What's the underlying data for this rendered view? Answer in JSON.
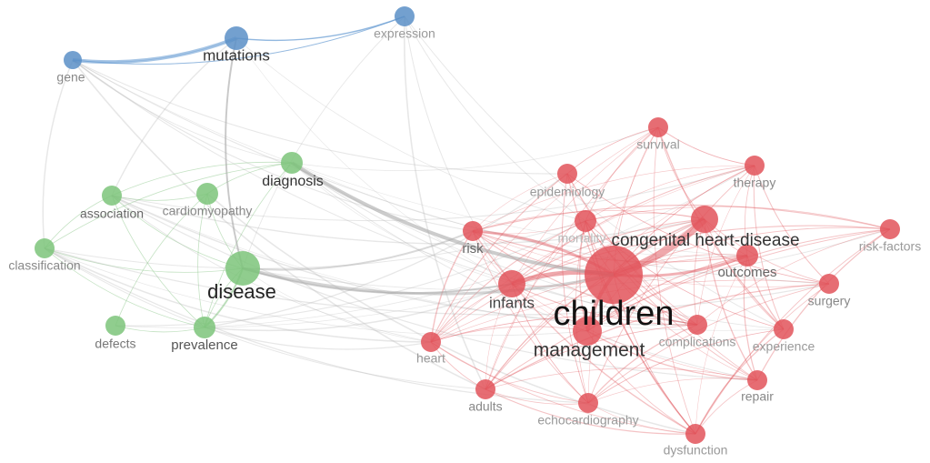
{
  "nodes": [
    {
      "label": "gene"
    },
    {
      "label": "mutations"
    },
    {
      "label": "expression"
    },
    {
      "label": "diagnosis"
    },
    {
      "label": "association"
    },
    {
      "label": "cardiomyopathy"
    },
    {
      "label": "classification"
    },
    {
      "label": "disease"
    },
    {
      "label": "defects"
    },
    {
      "label": "prevalence"
    },
    {
      "label": "survival"
    },
    {
      "label": "therapy"
    },
    {
      "label": "epidemiology"
    },
    {
      "label": "congenital heart-disease"
    },
    {
      "label": "risk-factors"
    },
    {
      "label": "risk"
    },
    {
      "label": "mortality"
    },
    {
      "label": "outcomes"
    },
    {
      "label": "infants"
    },
    {
      "label": "children"
    },
    {
      "label": "surgery"
    },
    {
      "label": "management"
    },
    {
      "label": "complications"
    },
    {
      "label": "experience"
    },
    {
      "label": "heart"
    },
    {
      "label": "repair"
    },
    {
      "label": "adults"
    },
    {
      "label": "echocardiography"
    },
    {
      "label": "dysfunction"
    }
  ]
}
